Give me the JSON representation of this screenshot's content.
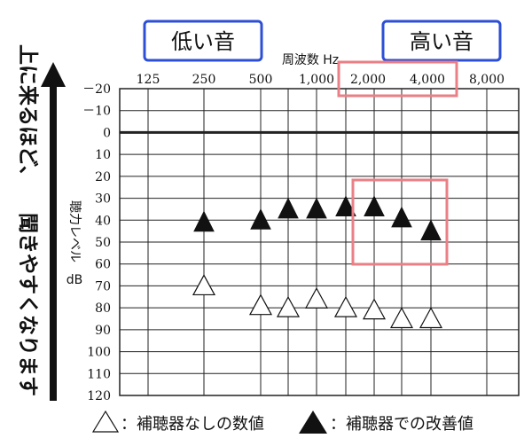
{
  "side_note": {
    "line1": "上に来るほど、",
    "line2": "聞きやすくなります"
  },
  "badges": {
    "low": "低い音",
    "high": "高い音"
  },
  "freq_label": "周波数 Hz",
  "ylabel_vertical": "聴力レベル",
  "ylabel_unit": "dB",
  "colors": {
    "badge_border": "#2d4fd6",
    "highlight": "#ea7f86",
    "grid": "#222222",
    "text": "#111111"
  },
  "legend": {
    "open": "：補聴器なしの数値",
    "filled": "：補聴器での改善値"
  },
  "chart_data": {
    "type": "scatter",
    "x": [
      "125",
      "250",
      "500",
      "750",
      "1,000",
      "1,500",
      "2,000",
      "3,000",
      "4,000",
      "8,000"
    ],
    "x_tick_labels": [
      "125",
      "250",
      "500",
      "1,000",
      "2,000",
      "4,000",
      "8,000"
    ],
    "xlabel": "周波数 Hz",
    "ylabel": "聴力レベル dB",
    "ylim": [
      120,
      -20
    ],
    "y_ticks": [
      -20,
      -10,
      0,
      10,
      20,
      30,
      40,
      50,
      60,
      70,
      80,
      90,
      100,
      110,
      120
    ],
    "y_tick_labels": [
      "－20",
      "－10",
      "0",
      "10",
      "20",
      "30",
      "40",
      "50",
      "60",
      "70",
      "80",
      "90",
      "100",
      "110",
      "120"
    ],
    "grid": true,
    "legend_position": "bottom",
    "series": [
      {
        "name": "補聴器なしの数値",
        "marker": "open-triangle",
        "points": [
          {
            "x": "250",
            "y": 70
          },
          {
            "x": "500",
            "y": 79
          },
          {
            "x": "750",
            "y": 80
          },
          {
            "x": "1,000",
            "y": 76
          },
          {
            "x": "1,500",
            "y": 80
          },
          {
            "x": "2,000",
            "y": 81
          },
          {
            "x": "3,000",
            "y": 85
          },
          {
            "x": "4,000",
            "y": 85
          }
        ]
      },
      {
        "name": "補聴器での改善値",
        "marker": "filled-triangle",
        "points": [
          {
            "x": "250",
            "y": 41
          },
          {
            "x": "500",
            "y": 40
          },
          {
            "x": "750",
            "y": 35
          },
          {
            "x": "1,000",
            "y": 35
          },
          {
            "x": "1,500",
            "y": 34
          },
          {
            "x": "2,000",
            "y": 34
          },
          {
            "x": "3,000",
            "y": 39
          },
          {
            "x": "4,000",
            "y": 45
          }
        ]
      }
    ]
  }
}
